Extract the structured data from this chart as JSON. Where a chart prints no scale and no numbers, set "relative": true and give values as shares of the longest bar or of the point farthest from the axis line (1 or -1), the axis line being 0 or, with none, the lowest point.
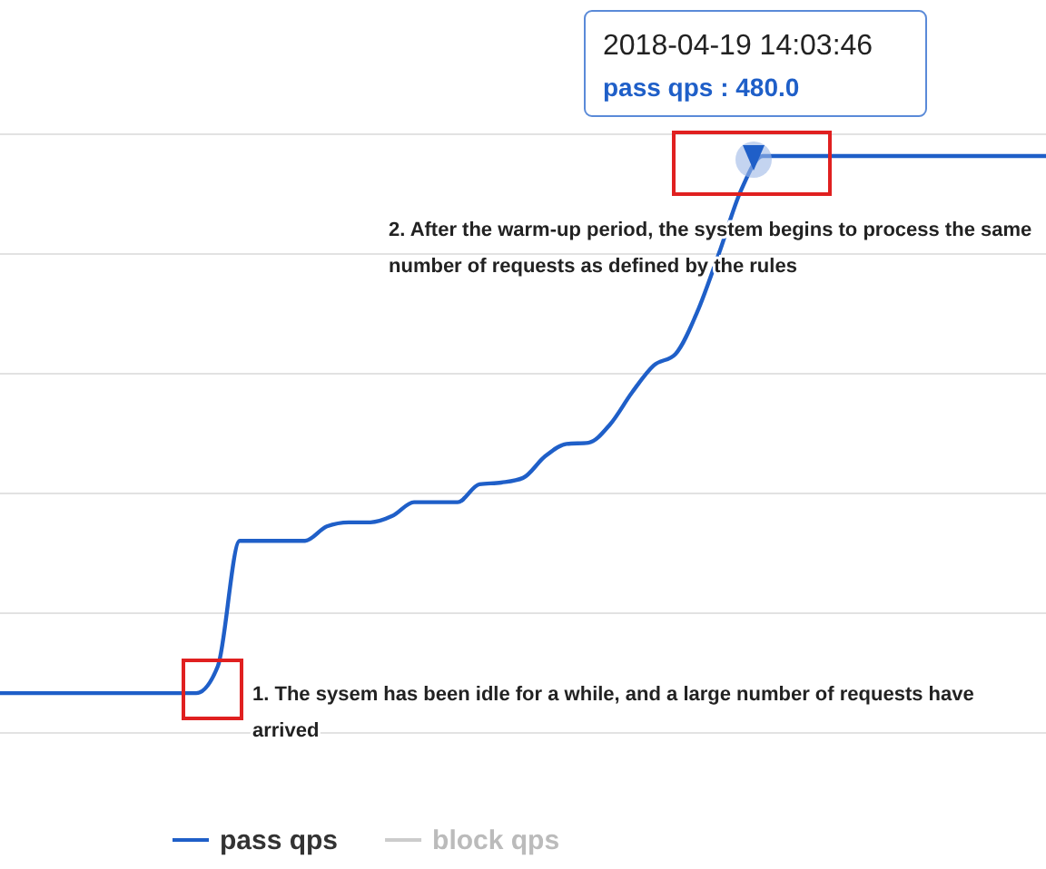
{
  "chart_data": {
    "type": "line",
    "relative": true,
    "grid": "y",
    "legend": "bottom",
    "marker": "none",
    "line_style": "solid",
    "categories": [
      null,
      null,
      null,
      null,
      null,
      null,
      null,
      null,
      null,
      null,
      null,
      null,
      null,
      null,
      null,
      null,
      null,
      null,
      null,
      null,
      null,
      null,
      null,
      null,
      null,
      null,
      null,
      null,
      null,
      null,
      null,
      null,
      null,
      null,
      null,
      null,
      null,
      null,
      null,
      null,
      null,
      null,
      null,
      null,
      null,
      null,
      null,
      null,
      null
    ],
    "series": [
      {
        "name": "pass qps",
        "color": "#1f5fc8",
        "values": [
          0.069,
          0.069,
          0.069,
          0.069,
          0.069,
          0.069,
          0.069,
          0.069,
          0.069,
          0.069,
          0.116,
          0.333,
          0.333,
          0.333,
          0.333,
          0.358,
          0.365,
          0.365,
          0.376,
          0.4,
          0.4,
          0.4,
          0.431,
          0.434,
          0.442,
          0.479,
          0.501,
          0.503,
          0.535,
          0.59,
          0.637,
          0.657,
          0.73,
          0.832,
          0.94,
          1,
          1,
          1,
          1,
          1,
          1,
          1,
          1,
          1,
          1,
          1,
          1,
          1,
          1
        ]
      },
      {
        "name": "block qps",
        "color": "#cccccc",
        "values": [
          null,
          null,
          null,
          null,
          null,
          null,
          null,
          null,
          null,
          null,
          null,
          null,
          null,
          null,
          null,
          null,
          null,
          null,
          null,
          null,
          null,
          null,
          null,
          null,
          null,
          null,
          null,
          null,
          null,
          null,
          null,
          null,
          null,
          null,
          null,
          null,
          null,
          null,
          null,
          null,
          null,
          null,
          null,
          null,
          null,
          null,
          null,
          null,
          null
        ]
      }
    ],
    "annotations": [
      "2018-04-19 14:03:46",
      "pass qps : 480.0",
      "2. After the warm-up period, the system begins to process the same number of requests as defined by the rules",
      "1. The sysem has been idle for a while, and a large number of requests have arrived"
    ]
  }
}
